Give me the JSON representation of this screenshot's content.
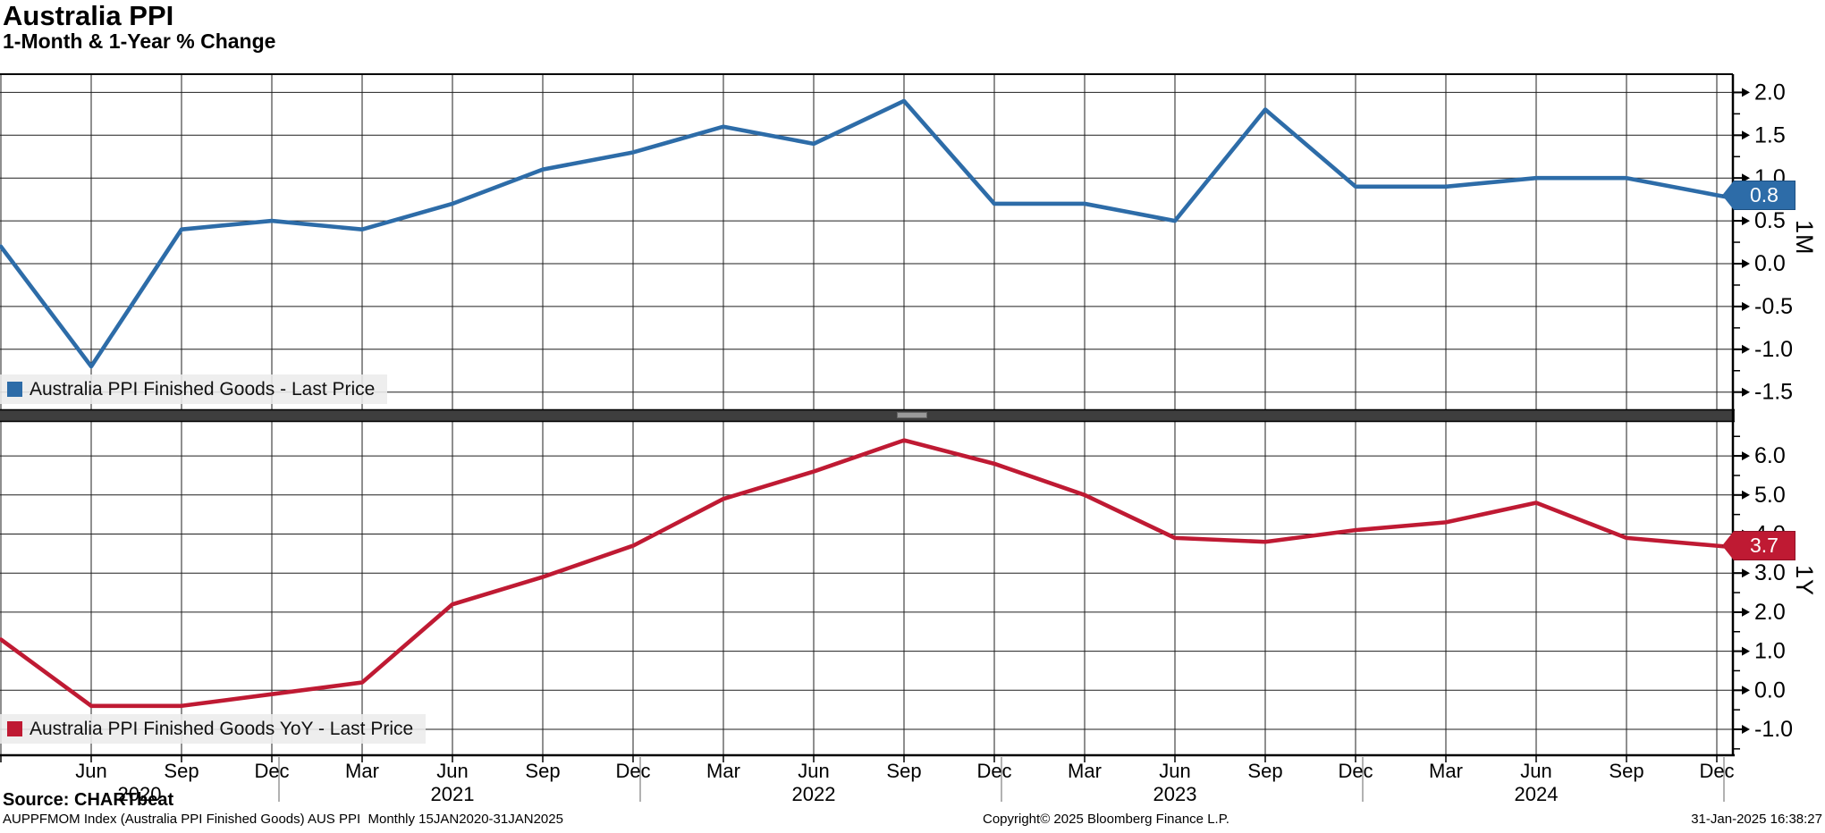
{
  "header": {
    "title": "Australia PPI",
    "subtitle": "1-Month & 1-Year % Change"
  },
  "colors": {
    "blue": "#2d6ca8",
    "blue_dark": "#1d4f80",
    "red": "#bf1a33",
    "red_dark": "#8e1226",
    "grid": "#1f1f1f",
    "axis": "#000000",
    "separator": "#3e3e3e",
    "year_divider": "#999999"
  },
  "x_axis": {
    "tick_labels": [
      "Jun",
      "Sep",
      "Dec",
      "Mar",
      "Jun",
      "Sep",
      "Dec",
      "Mar",
      "Jun",
      "Sep",
      "Dec",
      "Mar",
      "Jun",
      "Sep",
      "Dec",
      "Mar",
      "Jun",
      "Sep",
      "Dec"
    ],
    "year_labels": [
      "2020",
      "2021",
      "2022",
      "2023",
      "2024"
    ]
  },
  "chart_data": [
    {
      "type": "line",
      "panel": "top",
      "name": "Australia PPI Finished Goods - Last Price",
      "legend_label": "Australia PPI Finished Goods - Last Price",
      "axis_title": "1M",
      "last_price_badge": "0.8",
      "categories": [
        "Mar 2020",
        "Jun 2020",
        "Sep 2020",
        "Dec 2020",
        "Mar 2021",
        "Jun 2021",
        "Sep 2021",
        "Dec 2021",
        "Mar 2022",
        "Jun 2022",
        "Sep 2022",
        "Dec 2022",
        "Mar 2023",
        "Jun 2023",
        "Sep 2023",
        "Dec 2023",
        "Mar 2024",
        "Jun 2024",
        "Sep 2024",
        "Dec 2024"
      ],
      "values": [
        0.2,
        -1.2,
        0.4,
        0.5,
        0.4,
        0.7,
        1.1,
        1.3,
        1.6,
        1.4,
        1.9,
        0.7,
        0.7,
        0.5,
        1.8,
        0.9,
        0.9,
        1.0,
        1.0,
        0.8
      ],
      "yticks": [
        2.0,
        1.5,
        1.0,
        0.5,
        0.0,
        -0.5,
        -1.0,
        -1.5
      ],
      "ytick_labels": [
        "2.0",
        "1.5",
        "1.0",
        "0.5",
        "0.0",
        "-0.5",
        "-1.0",
        "-1.5"
      ],
      "ylim": [
        -1.72,
        2.21
      ],
      "grid": "on",
      "legend_position": "bottom-left"
    },
    {
      "type": "line",
      "panel": "bottom",
      "name": "Australia PPI Finished Goods YoY - Last Price",
      "legend_label": "Australia PPI Finished Goods YoY - Last Price",
      "axis_title": "1Y",
      "last_price_badge": "3.7",
      "categories": [
        "Mar 2020",
        "Jun 2020",
        "Sep 2020",
        "Dec 2020",
        "Mar 2021",
        "Jun 2021",
        "Sep 2021",
        "Dec 2021",
        "Mar 2022",
        "Jun 2022",
        "Sep 2022",
        "Dec 2022",
        "Mar 2023",
        "Jun 2023",
        "Sep 2023",
        "Dec 2023",
        "Mar 2024",
        "Jun 2024",
        "Sep 2024",
        "Dec 2024"
      ],
      "values": [
        1.3,
        -0.4,
        -0.4,
        -0.1,
        0.2,
        2.2,
        2.9,
        3.7,
        4.9,
        5.6,
        6.4,
        5.8,
        5.0,
        3.9,
        3.8,
        4.1,
        4.3,
        4.8,
        3.9,
        3.7
      ],
      "yticks": [
        6.0,
        5.0,
        4.0,
        3.0,
        2.0,
        1.0,
        0.0,
        -1.0
      ],
      "ytick_labels": [
        "6.0",
        "5.0",
        "4.0",
        "3.0",
        "2.0",
        "1.0",
        "0.0",
        "-1.0"
      ],
      "ylim": [
        -1.66,
        6.87
      ],
      "grid": "on",
      "legend_position": "bottom-left"
    }
  ],
  "footer": {
    "source": "Source: CHARTbeat",
    "index_info": "AUPPFMOM Index (Australia PPI Finished Goods) AUS PPI  Monthly 15JAN2020-31JAN2025",
    "copyright": "Copyright© 2025 Bloomberg Finance L.P.",
    "timestamp": "31-Jan-2025 16:38:27"
  }
}
